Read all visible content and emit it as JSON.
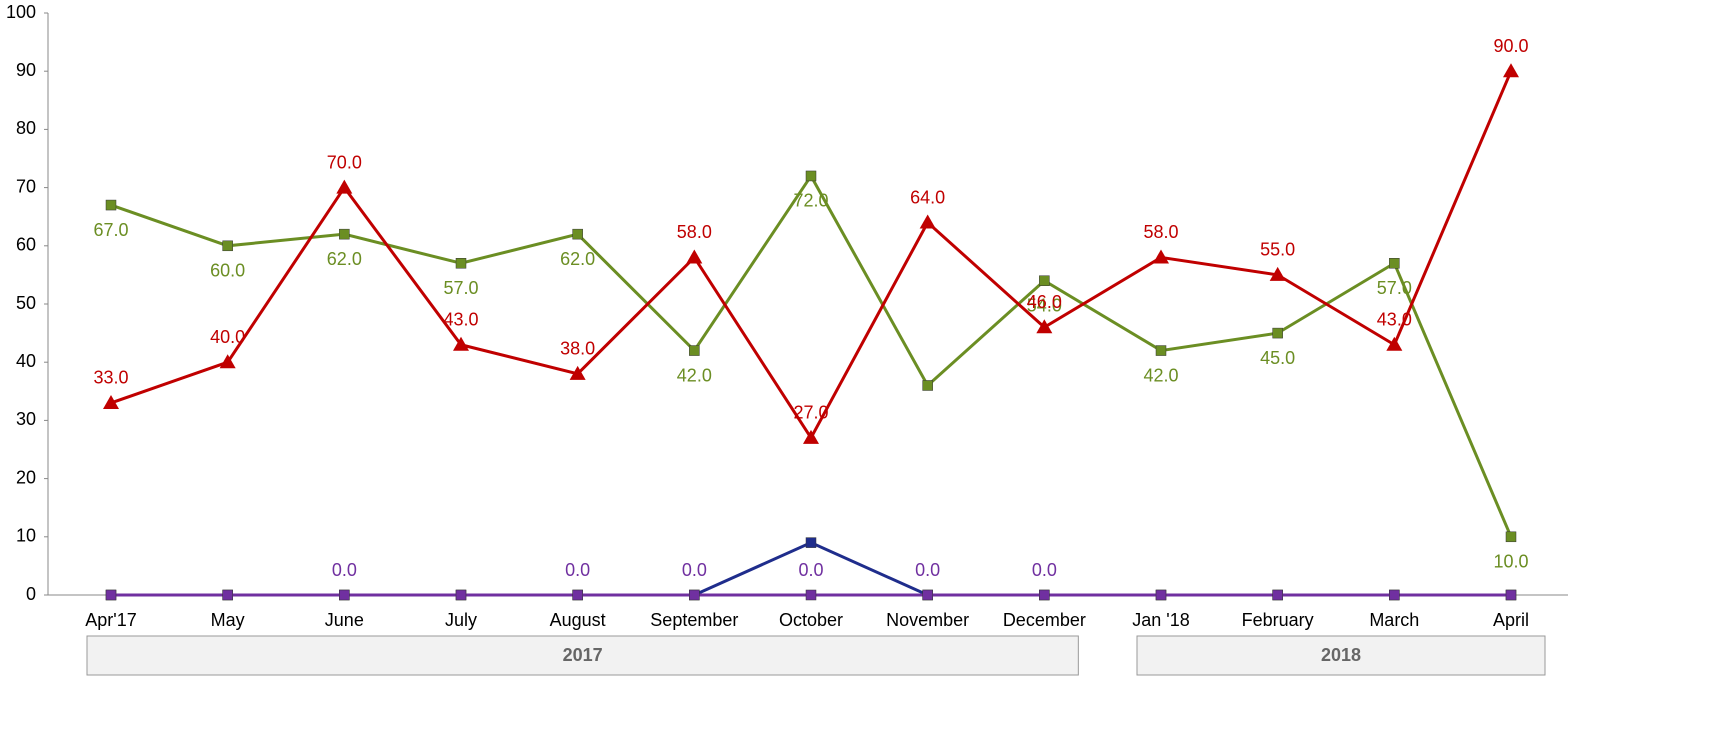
{
  "chart_data": {
    "type": "line",
    "categories": [
      "Apr'17",
      "May",
      "June",
      "July",
      "August",
      "September",
      "October",
      "November",
      "December",
      "Jan '18",
      "February",
      "March",
      "April"
    ],
    "groups": [
      {
        "label": "2017",
        "span": 9
      },
      {
        "label": "2018",
        "span": 4
      }
    ],
    "series": [
      {
        "color": "#6b8e23",
        "marker": "square",
        "label_position": "below",
        "values": [
          67,
          60,
          62,
          57,
          62,
          42,
          72,
          36,
          54,
          42,
          45,
          57,
          10
        ],
        "value_labels": [
          "67.0",
          "60.0",
          "62.0",
          "57.0",
          "62.0",
          "42.0",
          "72.0",
          null,
          "54.0",
          "42.0",
          "45.0",
          "57.0",
          "10.0"
        ]
      },
      {
        "color": "#c00000",
        "marker": "triangle",
        "label_position": "above",
        "values": [
          33,
          40,
          70,
          43,
          38,
          58,
          27,
          64,
          46,
          58,
          55,
          43,
          90
        ],
        "value_labels": [
          "33.0",
          "40.0",
          "70.0",
          "43.0",
          "38.0",
          "58.0",
          "27.0",
          "64.0",
          "46.0",
          "58.0",
          "55.0",
          "43.0",
          "90.0"
        ]
      },
      {
        "color": "#1f2d8c",
        "marker": "square",
        "label_position": "above",
        "values": [
          0,
          0,
          0,
          0,
          0,
          0,
          9,
          0,
          0,
          0,
          0,
          0,
          0
        ]
      },
      {
        "color": "#7030a0",
        "marker": "square",
        "label_position": "above",
        "values": [
          0,
          0,
          0,
          0,
          0,
          0,
          0,
          0,
          0,
          0,
          0,
          0,
          0
        ],
        "value_labels": [
          null,
          null,
          "0.0",
          null,
          "0.0",
          "0.0",
          "0.0",
          "0.0",
          "0.0",
          null,
          null,
          null,
          null
        ]
      }
    ],
    "ylim": [
      0,
      100
    ],
    "yticks": [
      0,
      10,
      20,
      30,
      40,
      50,
      60,
      70,
      80,
      90,
      100
    ],
    "grid": false
  }
}
